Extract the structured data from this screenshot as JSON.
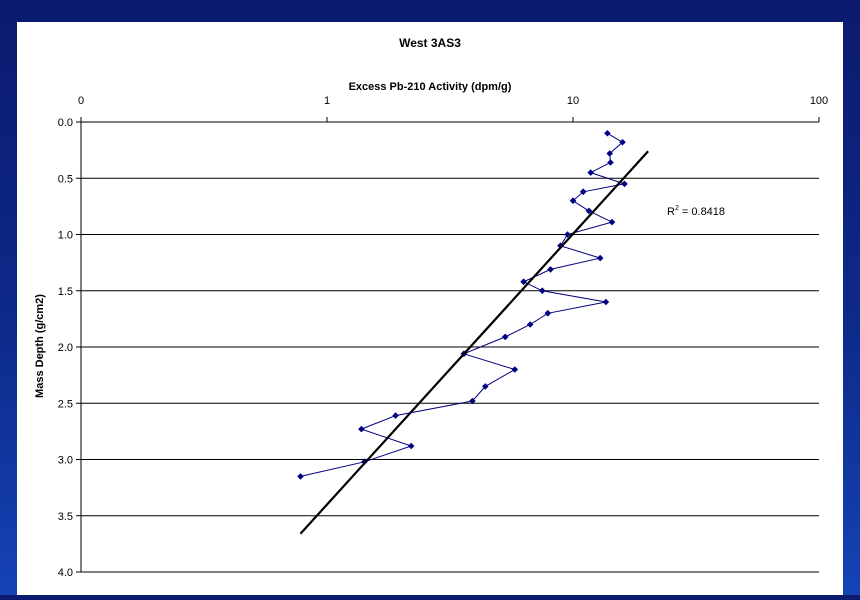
{
  "chart_data": {
    "type": "scatter",
    "title": "West 3AS3",
    "xlabel": "Excess Pb-210 Activity (dpm/g)",
    "ylabel": "Mass Depth (g/cm2)",
    "x_scale": "log",
    "x_axis_position": "top",
    "y_reversed": true,
    "xlim": [
      0.1,
      100
    ],
    "ylim": [
      0.0,
      4.0
    ],
    "x_ticks": [
      0.1,
      1,
      10,
      100
    ],
    "x_tick_labels": [
      "0",
      "1",
      "10",
      "100"
    ],
    "y_ticks": [
      0.0,
      0.5,
      1.0,
      1.5,
      2.0,
      2.5,
      3.0,
      3.5,
      4.0
    ],
    "y_tick_labels": [
      "0.0",
      "0.5",
      "1.0",
      "1.5",
      "2.0",
      "2.5",
      "3.0",
      "3.5",
      "4.0"
    ],
    "grid": "horizontal",
    "series": [
      {
        "points": [
          [
            13.8,
            0.1
          ],
          [
            15.9,
            0.18
          ],
          [
            14.1,
            0.28
          ],
          [
            14.2,
            0.36
          ],
          [
            11.8,
            0.45
          ],
          [
            16.2,
            0.55
          ],
          [
            11.0,
            0.62
          ],
          [
            10.0,
            0.7
          ],
          [
            11.6,
            0.79
          ],
          [
            14.4,
            0.89
          ],
          [
            9.5,
            1.0
          ],
          [
            8.9,
            1.1
          ],
          [
            12.9,
            1.21
          ],
          [
            8.1,
            1.31
          ],
          [
            6.3,
            1.42
          ],
          [
            7.5,
            1.5
          ],
          [
            13.6,
            1.6
          ],
          [
            7.9,
            1.7
          ],
          [
            6.7,
            1.8
          ],
          [
            5.3,
            1.91
          ],
          [
            3.6,
            2.06
          ],
          [
            5.8,
            2.2
          ],
          [
            4.4,
            2.35
          ],
          [
            3.9,
            2.48
          ],
          [
            1.9,
            2.61
          ],
          [
            1.38,
            2.73
          ],
          [
            2.2,
            2.88
          ],
          [
            1.42,
            3.02
          ],
          [
            0.78,
            3.15
          ]
        ],
        "color": "#000080"
      }
    ],
    "trendline": {
      "type": "exponential fit",
      "points": [
        [
          0.78,
          3.66
        ],
        [
          20.2,
          0.26
        ]
      ],
      "color": "#000000",
      "annotation": "R² = 0.8418",
      "annotation_main": "R",
      "annotation_sup": "2",
      "annotation_value": " = 0.8418"
    },
    "legend": "none"
  }
}
